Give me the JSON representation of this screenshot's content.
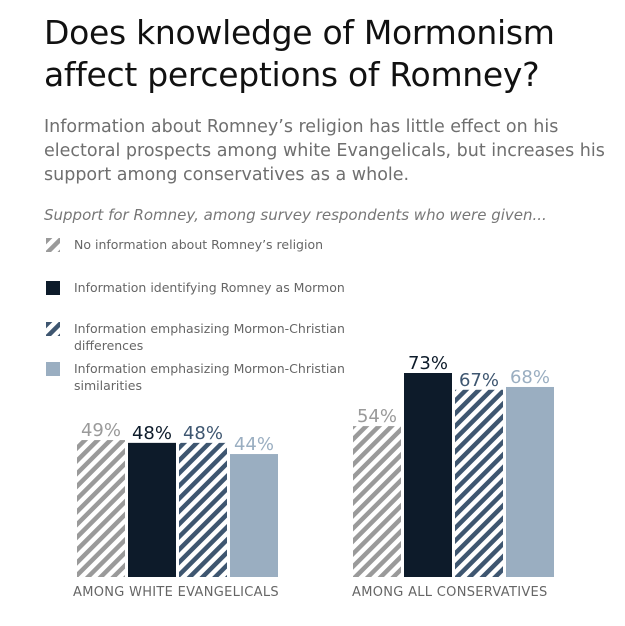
{
  "title": "Does knowledge of Mormonism affect perceptions of Romney?",
  "subtitle": "Information about Romney’s religion has little effect on his electoral prospects among white Evangelicals, but increases his support among conservatives as a whole.",
  "intro": "Support for Romney, among survey respondents who were given...",
  "colors": {
    "no_info": "#9a9a9a",
    "mormon": "#0d1b2a",
    "differences": "#3e5670",
    "similarities": "#9aaec1"
  },
  "legend": [
    {
      "label": "No information about Romney’s religion",
      "style": "gray-hatch"
    },
    {
      "label": "Information identifying Romney as Mormon",
      "style": "solid-dark"
    },
    {
      "label": "Information emphasizing Mormon-Christian differences",
      "style": "blue-hatch"
    },
    {
      "label": "Information emphasizing Mormon-Christian similarities",
      "style": "solid-light"
    }
  ],
  "chart_data": {
    "type": "bar",
    "categories": [
      "AMONG WHITE EVANGELICALS",
      "AMONG ALL CONSERVATIVES"
    ],
    "unit": "%",
    "ylim": [
      0,
      80
    ],
    "grid": false,
    "series": [
      {
        "name": "No information about Romney’s religion",
        "values": [
          49,
          54
        ],
        "labels": [
          "49%",
          "54%"
        ]
      },
      {
        "name": "Information identifying Romney as Mormon",
        "values": [
          48,
          73
        ],
        "labels": [
          "48%",
          "73%"
        ]
      },
      {
        "name": "Information emphasizing Mormon-Christian differences",
        "values": [
          48,
          67
        ],
        "labels": [
          "48%",
          "67%"
        ]
      },
      {
        "name": "Information emphasizing Mormon-Christian similarities",
        "values": [
          44,
          68
        ],
        "labels": [
          "44%",
          "68%"
        ]
      }
    ]
  }
}
